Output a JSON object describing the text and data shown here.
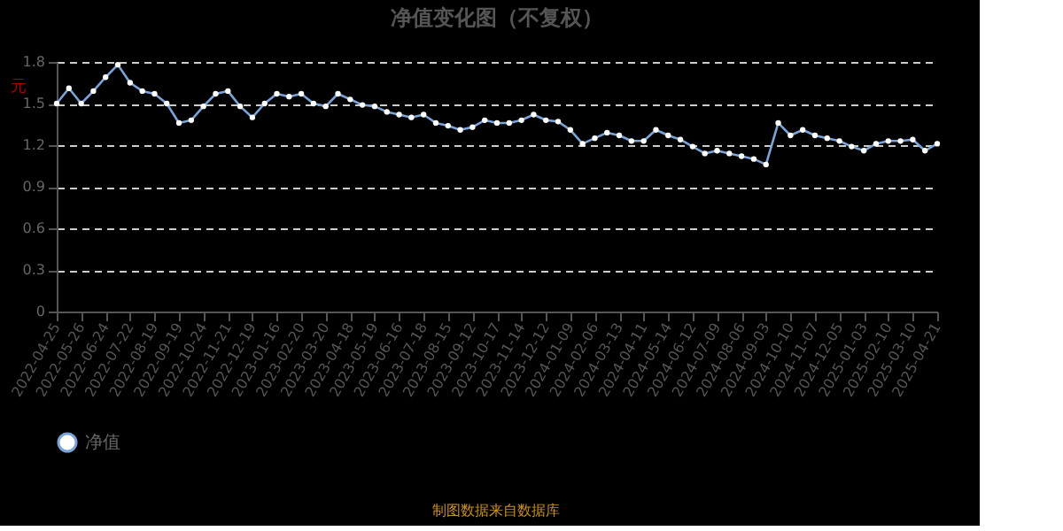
{
  "chart_data": {
    "type": "line",
    "title": "净值变化图（不复权）",
    "ylabel": "元",
    "categories": [
      "2022-04-25",
      null,
      "2022-05-26",
      null,
      "2022-06-24",
      null,
      "2022-07-22",
      null,
      "2022-08-19",
      null,
      "2022-09-19",
      null,
      "2022-10-24",
      null,
      "2022-11-21",
      null,
      "2022-12-19",
      null,
      "2023-01-16",
      null,
      "2023-02-20",
      null,
      "2023-03-20",
      null,
      "2023-04-18",
      null,
      "2023-05-19",
      null,
      "2023-06-16",
      null,
      "2023-07-18",
      null,
      "2023-08-15",
      null,
      "2023-09-12",
      null,
      "2023-10-17",
      null,
      "2023-11-14",
      null,
      "2023-12-12",
      null,
      "2024-01-09",
      null,
      "2024-02-06",
      null,
      "2024-03-13",
      null,
      "2024-04-11",
      null,
      "2024-05-14",
      null,
      "2024-06-12",
      null,
      "2024-07-09",
      null,
      "2024-08-06",
      null,
      "2024-09-03",
      null,
      "2024-10-10",
      null,
      "2024-11-07",
      null,
      "2024-12-05",
      null,
      "2025-01-03",
      null,
      "2025-02-10",
      null,
      "2025-03-10",
      null,
      "2025-04-21"
    ],
    "series": [
      {
        "name": "净值",
        "color": "#7ba3d6",
        "values": [
          1.5,
          1.61,
          1.5,
          1.59,
          1.69,
          1.78,
          1.65,
          1.59,
          1.57,
          1.5,
          1.36,
          1.38,
          1.48,
          1.57,
          1.59,
          1.48,
          1.4,
          1.5,
          1.57,
          1.55,
          1.57,
          1.5,
          1.48,
          1.57,
          1.53,
          1.49,
          1.48,
          1.44,
          1.42,
          1.4,
          1.42,
          1.36,
          1.34,
          1.31,
          1.33,
          1.38,
          1.36,
          1.36,
          1.38,
          1.42,
          1.38,
          1.37,
          1.31,
          1.21,
          1.25,
          1.29,
          1.27,
          1.23,
          1.23,
          1.31,
          1.27,
          1.24,
          1.19,
          1.14,
          1.16,
          1.14,
          1.12,
          1.1,
          1.06,
          1.36,
          1.27,
          1.31,
          1.27,
          1.25,
          1.23,
          1.19,
          1.16,
          1.21,
          1.23,
          1.23,
          1.24,
          1.16,
          1.21
        ]
      }
    ],
    "ylim": [
      0,
      1.8
    ],
    "yticks": [
      0,
      0.3,
      0.6,
      0.9,
      1.2,
      1.5,
      1.8
    ],
    "grid": "y",
    "legend": "bottom",
    "marker": "circle",
    "line_style": "solid",
    "annotations": [
      "制图数据来自数据库"
    ]
  }
}
